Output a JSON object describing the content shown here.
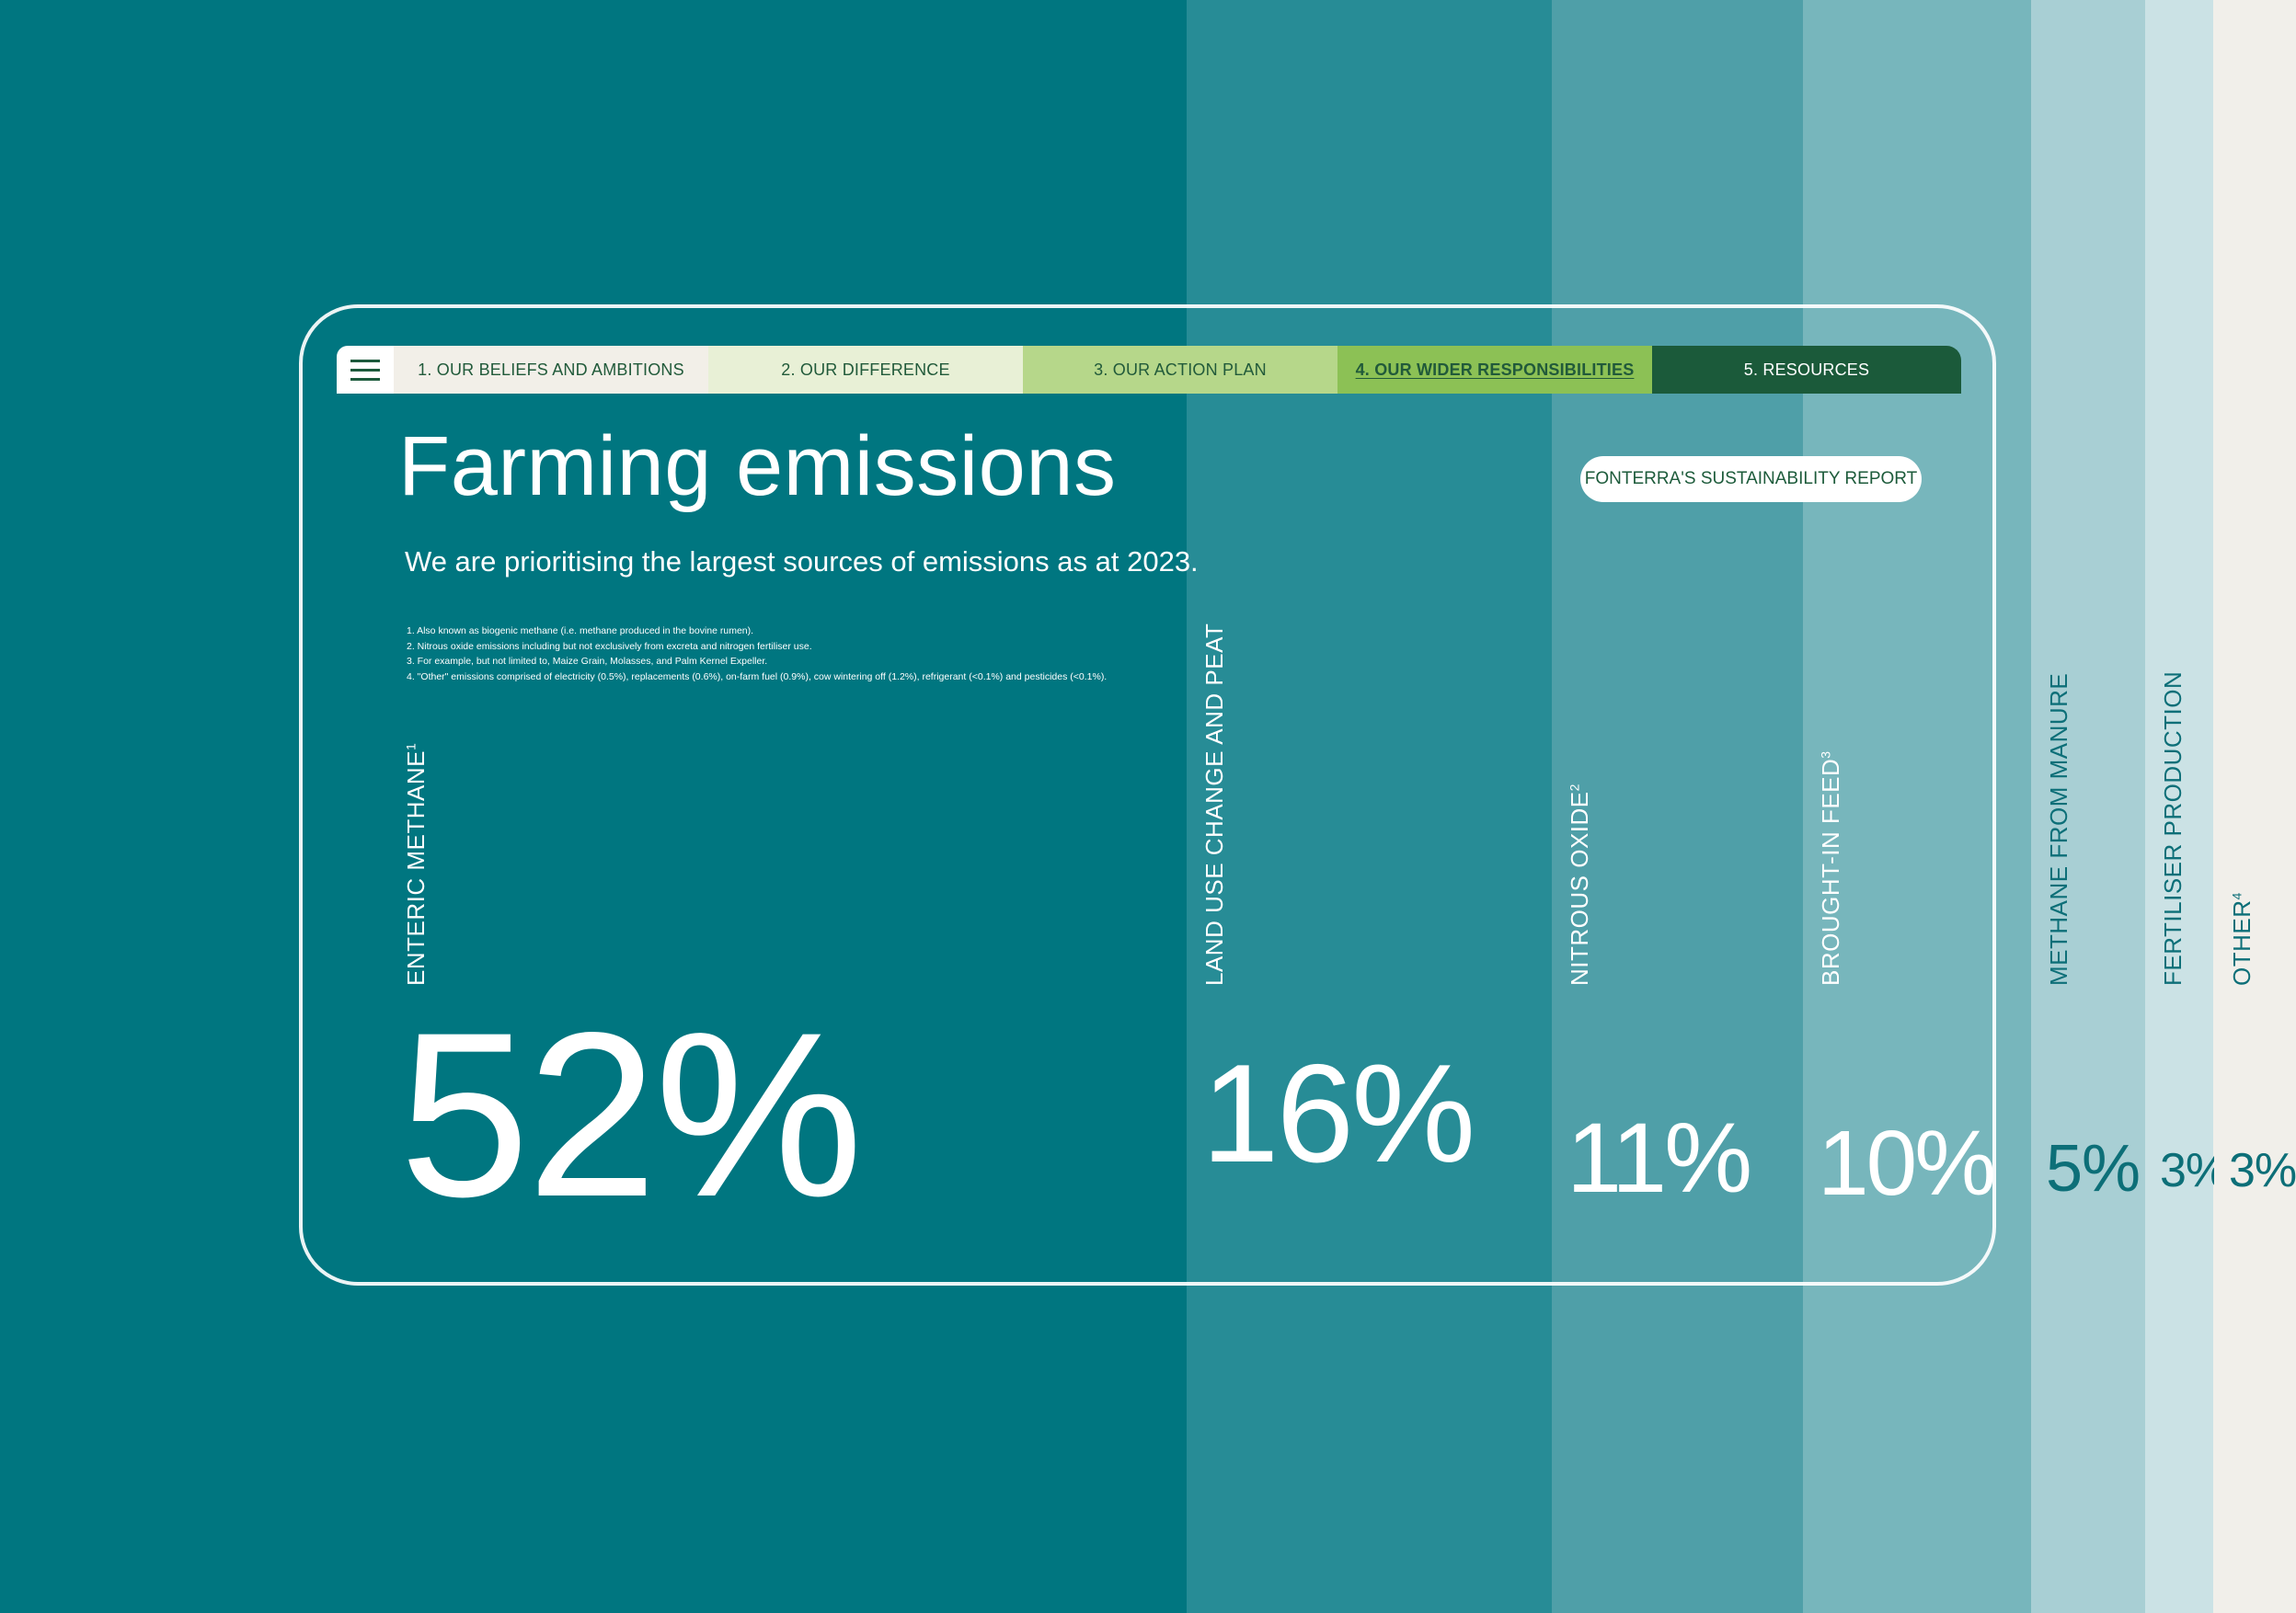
{
  "nav": {
    "tabs": [
      {
        "label": "1. OUR BELIEFS AND AMBITIONS",
        "bg": "#f2efe8"
      },
      {
        "label": "2. OUR DIFFERENCE",
        "bg": "#e8f0d6"
      },
      {
        "label": "3. OUR ACTION PLAN",
        "bg": "#b6d78a"
      },
      {
        "label": "4. OUR WIDER RESPONSIBILITIES",
        "bg": "#8cc155",
        "active": true
      },
      {
        "label": "5. RESOURCES",
        "bg": "#1b5a3a",
        "dark": true
      }
    ]
  },
  "header": {
    "title": "Farming emissions",
    "subtitle": "We are prioritising the largest sources of emissions as at 2023.",
    "badge": "FONTERRA'S SUSTAINABILITY REPORT"
  },
  "footnotes": [
    "1. Also known as biogenic methane (i.e. methane produced in the bovine rumen).",
    "2. Nitrous oxide emissions including but not exclusively from excreta and nitrogen fertiliser use.",
    "3. For example, but not limited to, Maize Grain, Molasses, and Palm Kernel Expeller.",
    "4. \"Other\" emissions comprised of electricity (0.5%), replacements (0.6%), on-farm fuel (0.9%), cow wintering off (1.2%), refrigerant (<0.1%) and pesticides (<0.1%)."
  ],
  "chart_data": {
    "type": "bar",
    "categories": [
      "ENTERIC METHANE",
      "LAND USE CHANGE AND PEAT",
      "NITROUS OXIDE",
      "BROUGHT-IN FEED",
      "METHANE FROM MANURE",
      "FERTILISER PRODUCTION",
      "OTHER"
    ],
    "footnote_marks": [
      "1",
      "",
      "2",
      "3",
      "",
      "",
      "4"
    ],
    "values": [
      52,
      16,
      11,
      10,
      5,
      3,
      3
    ],
    "value_labels": [
      "52%",
      "16%",
      "11%",
      "10%",
      "5%",
      "3%",
      "3%"
    ],
    "colors": [
      "#007680",
      "#278c96",
      "#4f9fa8",
      "#77b6bc",
      "#a8cfd4",
      "#cbe2e5",
      "#f1efea"
    ],
    "text_colors": [
      "#ffffff",
      "#ffffff",
      "#ffffff",
      "#ffffff",
      "#0d6f78",
      "#0d6f78",
      "#0d6f78"
    ]
  }
}
